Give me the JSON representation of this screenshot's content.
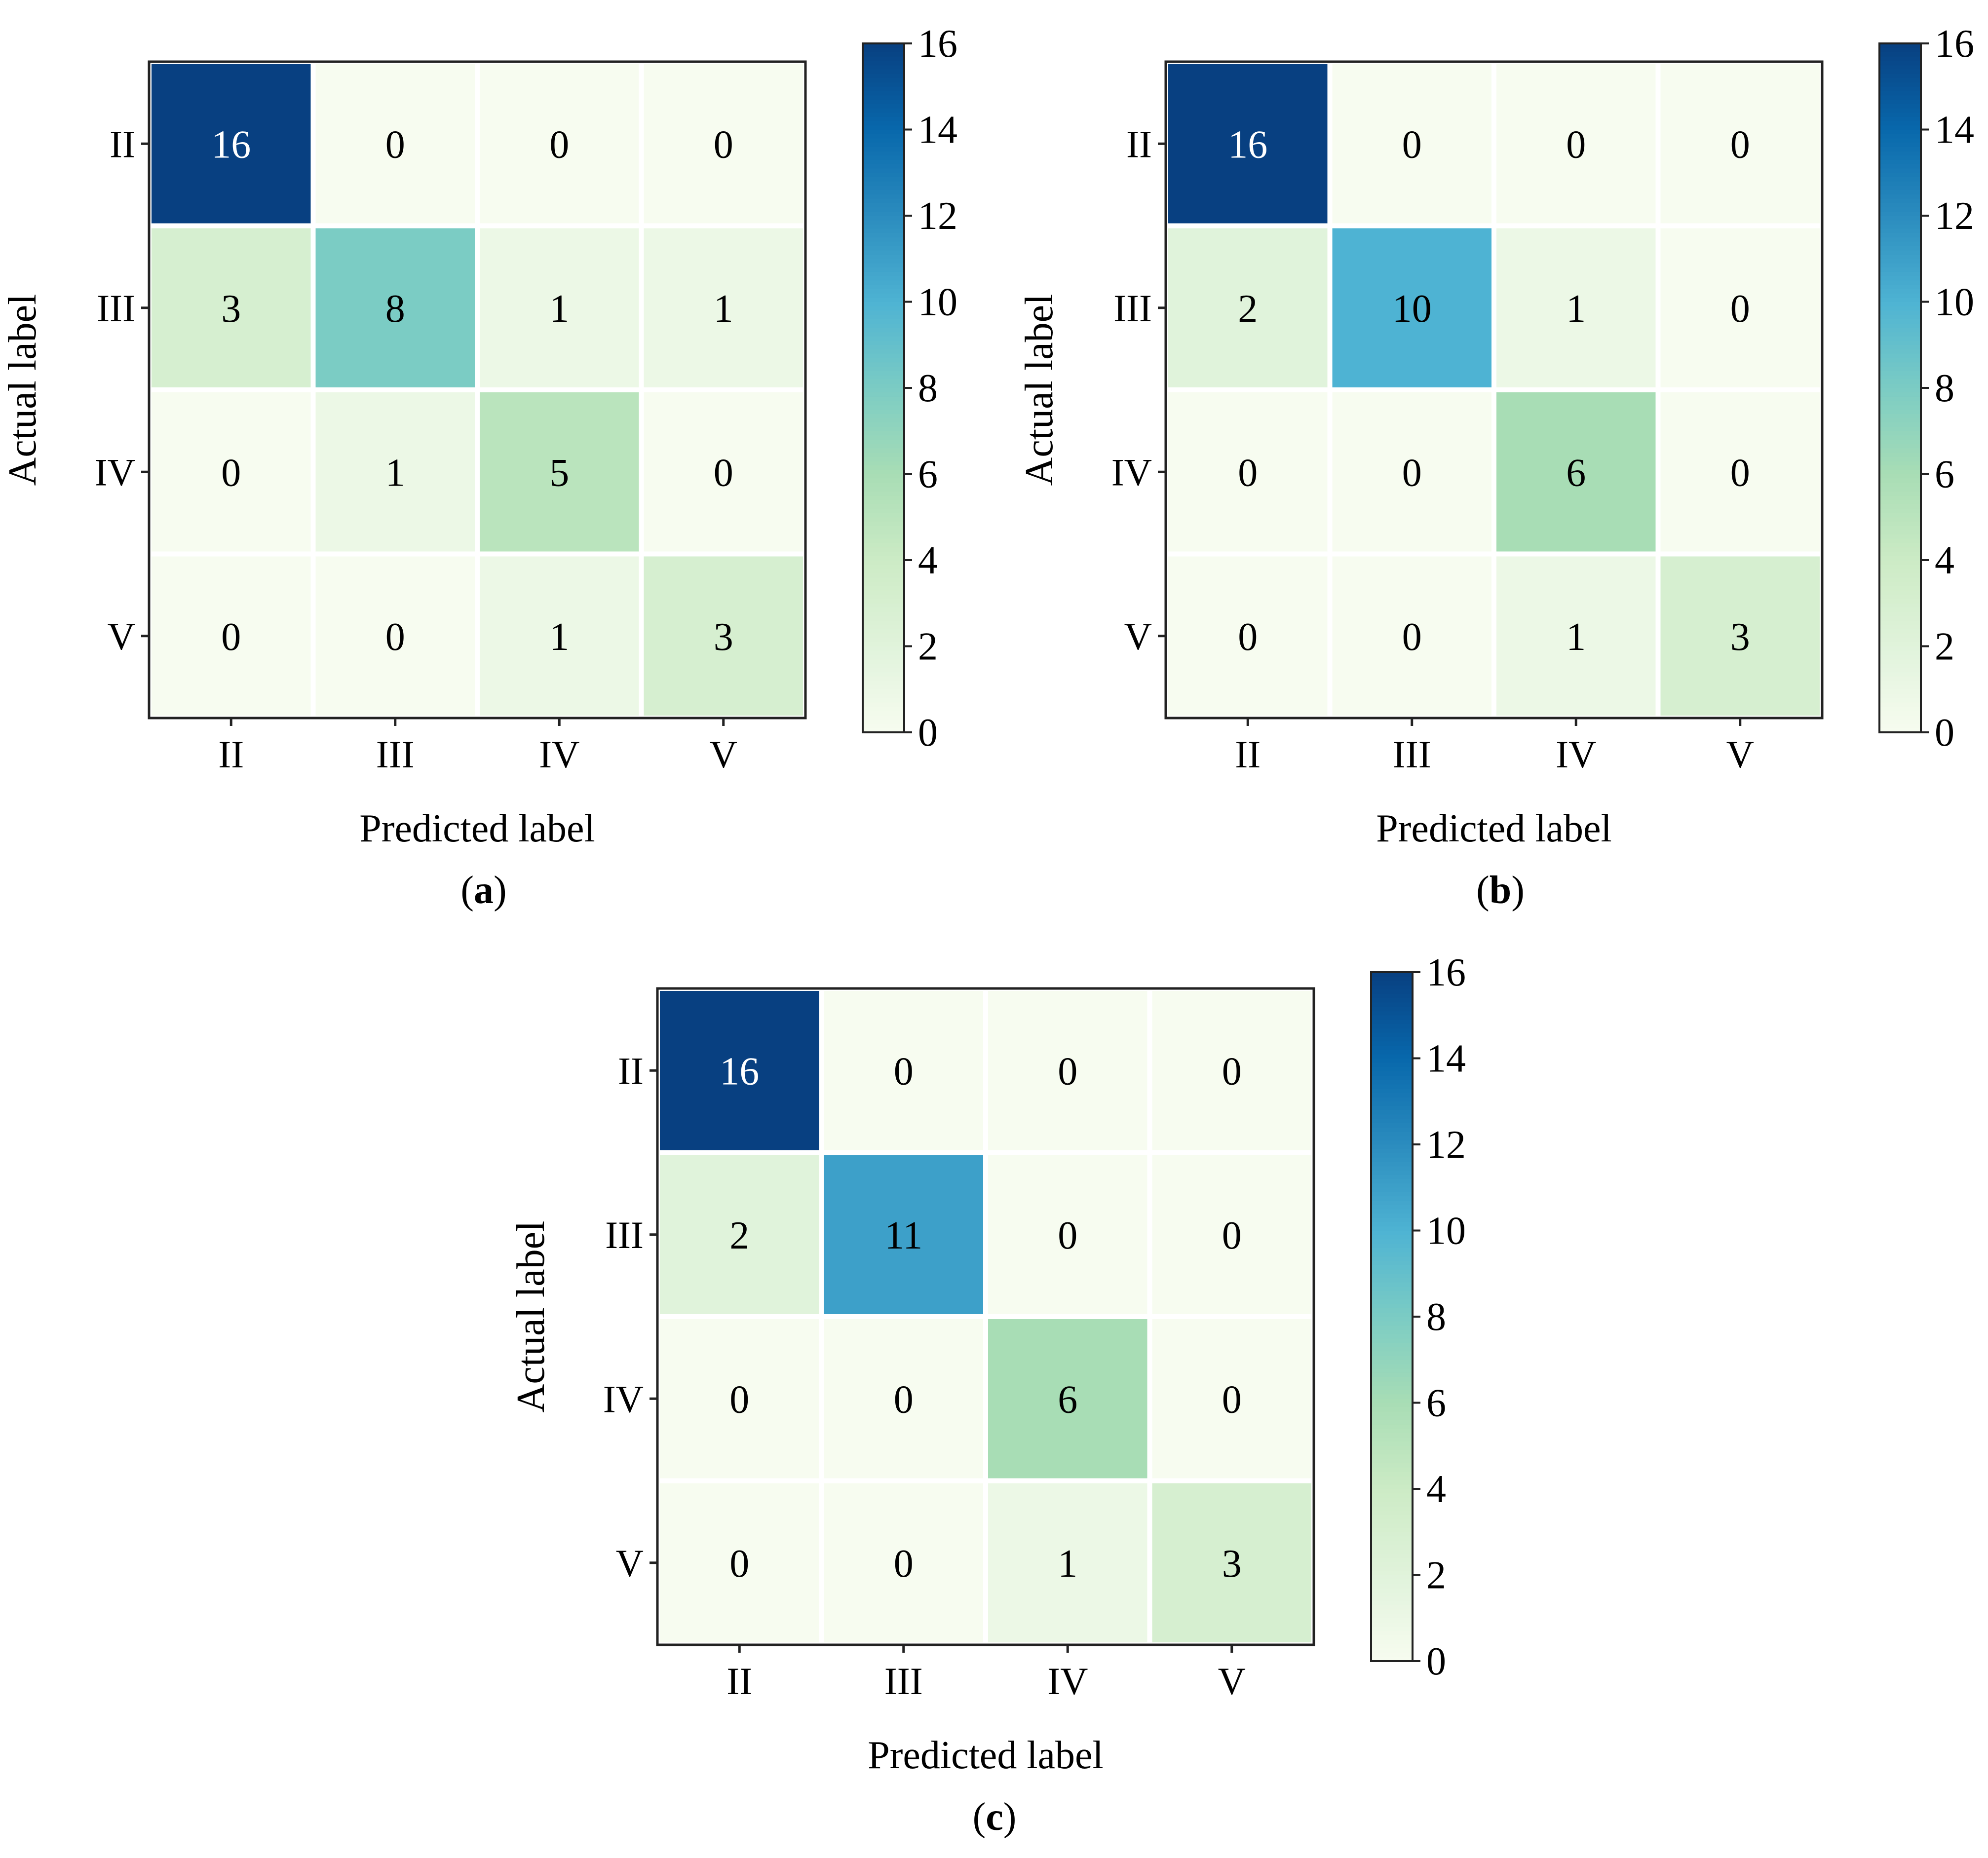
{
  "colormap": {
    "name": "GnBu",
    "stops": [
      "#f7fcf0",
      "#e0f3db",
      "#ccebc5",
      "#a8ddb5",
      "#7bccc4",
      "#4eb3d3",
      "#2b8cbe",
      "#0868ac",
      "#084081"
    ]
  },
  "chart_data": [
    {
      "type": "heatmap",
      "caption_label": "a",
      "x_categories": [
        "II",
        "III",
        "IV",
        "V"
      ],
      "y_categories": [
        "II",
        "III",
        "IV",
        "V"
      ],
      "xlabel": "Predicted label",
      "ylabel": "Actual label",
      "matrix": [
        [
          16,
          0,
          0,
          0
        ],
        [
          3,
          8,
          1,
          1
        ],
        [
          0,
          1,
          5,
          0
        ],
        [
          0,
          0,
          1,
          3
        ]
      ],
      "colorbar": {
        "min": 0,
        "max": 16,
        "ticks": [
          "0",
          "2",
          "4",
          "6",
          "8",
          "10",
          "12",
          "14",
          "16"
        ]
      }
    },
    {
      "type": "heatmap",
      "caption_label": "b",
      "x_categories": [
        "II",
        "III",
        "IV",
        "V"
      ],
      "y_categories": [
        "II",
        "III",
        "IV",
        "V"
      ],
      "xlabel": "Predicted label",
      "ylabel": "Actual label",
      "matrix": [
        [
          16,
          0,
          0,
          0
        ],
        [
          2,
          10,
          1,
          0
        ],
        [
          0,
          0,
          6,
          0
        ],
        [
          0,
          0,
          1,
          3
        ]
      ],
      "colorbar": {
        "min": 0,
        "max": 16,
        "ticks": [
          "0",
          "2",
          "4",
          "6",
          "8",
          "10",
          "12",
          "14",
          "16"
        ]
      }
    },
    {
      "type": "heatmap",
      "caption_label": "c",
      "x_categories": [
        "II",
        "III",
        "IV",
        "V"
      ],
      "y_categories": [
        "II",
        "III",
        "IV",
        "V"
      ],
      "xlabel": "Predicted label",
      "ylabel": "Actual label",
      "matrix": [
        [
          16,
          0,
          0,
          0
        ],
        [
          2,
          11,
          0,
          0
        ],
        [
          0,
          0,
          6,
          0
        ],
        [
          0,
          0,
          1,
          3
        ]
      ],
      "colorbar": {
        "min": 0,
        "max": 16,
        "ticks": [
          "0",
          "2",
          "4",
          "6",
          "8",
          "10",
          "12",
          "14",
          "16"
        ]
      }
    }
  ]
}
